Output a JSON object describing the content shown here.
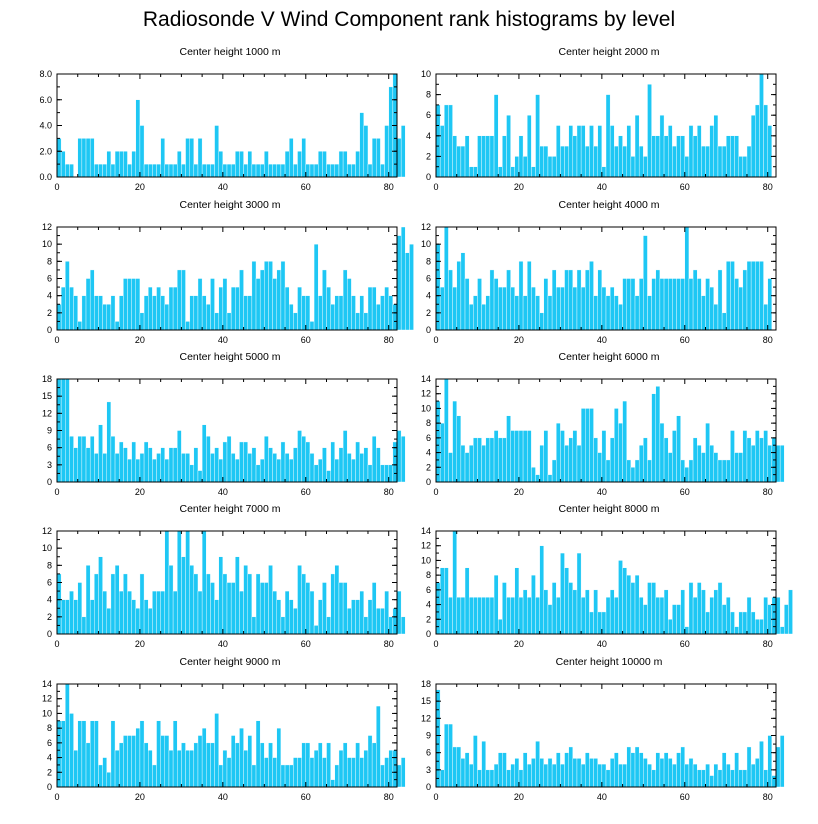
{
  "title": "Radiosonde V Wind Component rank histograms by level",
  "colors": {
    "bar": "#1ec7f4",
    "axis": "#000000",
    "background": "#ffffff"
  },
  "chart_data": [
    {
      "type": "bar",
      "title": "Center height 1000 m",
      "x": "rank 0-81",
      "xticks": [
        0,
        20,
        40,
        60,
        80
      ],
      "xlim": [
        0,
        82
      ],
      "ylim": [
        0,
        8
      ],
      "yticks": [
        0,
        2,
        4,
        6,
        8
      ],
      "yticklabels": [
        "0.0",
        "2.0",
        "4.0",
        "6.0",
        "8.0"
      ],
      "values": [
        3,
        2,
        1,
        1,
        0,
        3,
        3,
        3,
        3,
        1,
        1,
        1,
        2,
        1,
        2,
        2,
        2,
        1,
        2,
        6,
        4,
        1,
        1,
        1,
        1,
        3,
        1,
        1,
        1,
        2,
        1,
        3,
        3,
        1,
        3,
        1,
        1,
        1,
        4,
        2,
        1,
        1,
        1,
        2,
        2,
        1,
        2,
        1,
        1,
        1,
        2,
        1,
        1,
        1,
        1,
        2,
        3,
        1,
        2,
        3,
        1,
        1,
        1,
        2,
        2,
        1,
        1,
        1,
        2,
        2,
        1,
        1,
        2,
        5,
        4,
        1,
        3,
        3,
        1,
        4,
        7,
        8,
        3,
        4
      ]
    },
    {
      "type": "bar",
      "title": "Center height 2000 m",
      "xticks": [
        0,
        20,
        40,
        60,
        80
      ],
      "xlim": [
        0,
        82
      ],
      "ylim": [
        0,
        10
      ],
      "yticks": [
        0,
        2,
        4,
        6,
        8,
        10
      ],
      "yticklabels": [
        "0",
        "2",
        "4",
        "6",
        "8",
        "10"
      ],
      "values": [
        7,
        5,
        7,
        7,
        4,
        3,
        3,
        4,
        1,
        1,
        4,
        4,
        4,
        4,
        8,
        1,
        4,
        6,
        1,
        2,
        4,
        2,
        6,
        1,
        8,
        3,
        3,
        2,
        2,
        5,
        3,
        3,
        5,
        4,
        5,
        5,
        3,
        5,
        3,
        5,
        1,
        8,
        5,
        3,
        4,
        3,
        5,
        2,
        6,
        3,
        2,
        9,
        4,
        4,
        6,
        4,
        5,
        3,
        4,
        4,
        2,
        5,
        4,
        5,
        3,
        3,
        5,
        6,
        3,
        3,
        4,
        4,
        4,
        2,
        2,
        3,
        6,
        7,
        10,
        7,
        5
      ]
    },
    {
      "type": "bar",
      "title": "Center height 3000 m",
      "xticks": [
        0,
        20,
        40,
        60,
        80
      ],
      "xlim": [
        0,
        82
      ],
      "ylim": [
        0,
        12
      ],
      "yticks": [
        0,
        2,
        4,
        6,
        8,
        10,
        12
      ],
      "yticklabels": [
        "0",
        "2",
        "4",
        "6",
        "8",
        "10",
        "12"
      ],
      "values": [
        3,
        5,
        8,
        5,
        4,
        1,
        4,
        6,
        7,
        4,
        4,
        3,
        3,
        4,
        1,
        4,
        6,
        6,
        6,
        6,
        2,
        4,
        5,
        4,
        5,
        4,
        3,
        5,
        5,
        7,
        7,
        1,
        4,
        4,
        6,
        4,
        3,
        6,
        2,
        5,
        6,
        2,
        5,
        5,
        7,
        4,
        4,
        8,
        6,
        7,
        8,
        8,
        6,
        7,
        8,
        5,
        3,
        2,
        5,
        4,
        4,
        1,
        10,
        4,
        7,
        5,
        3,
        4,
        4,
        7,
        6,
        4,
        2,
        4,
        2,
        5,
        5,
        3,
        4,
        5,
        4,
        3,
        11,
        12,
        9,
        10
      ]
    },
    {
      "type": "bar",
      "title": "Center height 4000 m",
      "xticks": [
        0,
        20,
        40,
        60,
        80
      ],
      "xlim": [
        0,
        82
      ],
      "ylim": [
        0,
        12
      ],
      "yticks": [
        0,
        2,
        4,
        6,
        8,
        10,
        12
      ],
      "yticklabels": [
        "0",
        "2",
        "4",
        "6",
        "8",
        "10",
        "12"
      ],
      "values": [
        10,
        5,
        12,
        7,
        5,
        8,
        9,
        6,
        3,
        4,
        6,
        3,
        4,
        7,
        6,
        5,
        5,
        7,
        5,
        4,
        8,
        4,
        8,
        5,
        4,
        2,
        6,
        4,
        7,
        5,
        5,
        7,
        7,
        5,
        7,
        5,
        7,
        8,
        4,
        7,
        5,
        4,
        5,
        4,
        3,
        6,
        6,
        6,
        4,
        6,
        11,
        4,
        6,
        7,
        6,
        6,
        6,
        6,
        6,
        6,
        12,
        6,
        7,
        6,
        4,
        6,
        5,
        3,
        7,
        2,
        8,
        8,
        6,
        5,
        7,
        8,
        8,
        8,
        8,
        3,
        6
      ]
    },
    {
      "type": "bar",
      "title": "Center height 5000 m",
      "xticks": [
        0,
        20,
        40,
        60,
        80
      ],
      "xlim": [
        0,
        82
      ],
      "ylim": [
        0,
        18
      ],
      "yticks": [
        0,
        3,
        6,
        9,
        12,
        15,
        18
      ],
      "yticklabels": [
        "0",
        "3",
        "6",
        "9",
        "12",
        "15",
        "18"
      ],
      "values": [
        18,
        18,
        18,
        8,
        6,
        8,
        8,
        6,
        8,
        5,
        10,
        5,
        14,
        8,
        5,
        7,
        6,
        4,
        7,
        4,
        5,
        7,
        6,
        4,
        5,
        6,
        4,
        6,
        6,
        9,
        5,
        5,
        3,
        6,
        2,
        10,
        8,
        5,
        6,
        4,
        7,
        8,
        5,
        4,
        7,
        7,
        5,
        6,
        3,
        4,
        8,
        6,
        5,
        4,
        7,
        5,
        4,
        6,
        9,
        8,
        7,
        5,
        3,
        4,
        6,
        2,
        7,
        4,
        6,
        9,
        5,
        4,
        7,
        5,
        6,
        3,
        8,
        6,
        3,
        3,
        3,
        7,
        9,
        8
      ]
    },
    {
      "type": "bar",
      "title": "Center height 6000 m",
      "xticks": [
        0,
        20,
        40,
        60,
        80
      ],
      "xlim": [
        0,
        82
      ],
      "ylim": [
        0,
        14
      ],
      "yticks": [
        0,
        2,
        4,
        6,
        8,
        10,
        12,
        14
      ],
      "yticklabels": [
        "0",
        "2",
        "4",
        "6",
        "8",
        "10",
        "12",
        "14"
      ],
      "values": [
        11,
        8,
        14,
        4,
        11,
        9,
        5,
        4,
        5,
        6,
        6,
        5,
        6,
        6,
        7,
        6,
        6,
        9,
        7,
        7,
        7,
        7,
        7,
        2,
        1,
        5,
        7,
        1,
        3,
        8,
        7,
        5,
        6,
        7,
        5,
        10,
        10,
        10,
        6,
        4,
        7,
        3,
        6,
        10,
        8,
        11,
        3,
        2,
        3,
        5,
        6,
        3,
        12,
        13,
        8,
        6,
        4,
        7,
        9,
        3,
        2,
        3,
        6,
        5,
        4,
        8,
        5,
        4,
        3,
        3,
        3,
        7,
        4,
        4,
        7,
        6,
        5,
        7,
        6,
        7,
        5,
        6,
        5,
        5
      ]
    },
    {
      "type": "bar",
      "title": "Center height 7000 m",
      "xticks": [
        0,
        20,
        40,
        60,
        80
      ],
      "xlim": [
        0,
        82
      ],
      "ylim": [
        0,
        12
      ],
      "yticks": [
        0,
        2,
        4,
        6,
        8,
        10,
        12
      ],
      "yticklabels": [
        "0",
        "2",
        "4",
        "6",
        "8",
        "10",
        "12"
      ],
      "values": [
        7,
        4,
        4,
        5,
        4,
        6,
        2,
        8,
        4,
        7,
        9,
        5,
        3,
        7,
        8,
        5,
        7,
        5,
        4,
        3,
        7,
        4,
        3,
        5,
        5,
        5,
        12,
        8,
        5,
        12,
        9,
        12,
        8,
        7,
        5,
        12,
        7,
        6,
        4,
        9,
        7,
        6,
        6,
        9,
        5,
        8,
        7,
        2,
        7,
        6,
        6,
        8,
        5,
        4,
        2,
        5,
        4,
        3,
        8,
        7,
        6,
        5,
        1,
        4,
        6,
        2,
        7,
        8,
        6,
        6,
        3,
        4,
        4,
        5,
        2,
        4,
        6,
        3,
        3,
        5,
        2,
        3,
        5,
        2
      ]
    },
    {
      "type": "bar",
      "title": "Center height 8000 m",
      "xticks": [
        0,
        20,
        40,
        60,
        80
      ],
      "xlim": [
        0,
        82
      ],
      "ylim": [
        0,
        14
      ],
      "yticks": [
        0,
        2,
        4,
        6,
        8,
        10,
        12,
        14
      ],
      "yticklabels": [
        "0",
        "2",
        "4",
        "6",
        "8",
        "10",
        "12",
        "14"
      ],
      "values": [
        7,
        9,
        9,
        5,
        14,
        5,
        5,
        9,
        5,
        5,
        5,
        5,
        5,
        5,
        8,
        2,
        7,
        5,
        5,
        9,
        5,
        6,
        5,
        8,
        5,
        12,
        6,
        4,
        7,
        5,
        11,
        9,
        7,
        6,
        11,
        5,
        6,
        3,
        6,
        3,
        3,
        5,
        6,
        5,
        10,
        9,
        8,
        7,
        8,
        5,
        4,
        7,
        7,
        5,
        5,
        6,
        2,
        4,
        4,
        6,
        1,
        7,
        5,
        7,
        6,
        3,
        5,
        6,
        7,
        4,
        5,
        3,
        1,
        3,
        3,
        5,
        3,
        2,
        2,
        5,
        4,
        5,
        5,
        1,
        4,
        6
      ]
    },
    {
      "type": "bar",
      "title": "Center height 9000 m",
      "xticks": [
        0,
        20,
        40,
        60,
        80
      ],
      "xlim": [
        0,
        82
      ],
      "ylim": [
        0,
        14
      ],
      "yticks": [
        0,
        2,
        4,
        6,
        8,
        10,
        12,
        14
      ],
      "yticklabels": [
        "0",
        "2",
        "4",
        "6",
        "8",
        "10",
        "12",
        "14"
      ],
      "values": [
        9,
        9,
        14,
        10,
        5,
        9,
        9,
        6,
        9,
        9,
        3,
        4,
        2,
        9,
        5,
        6,
        7,
        7,
        7,
        8,
        9,
        6,
        5,
        3,
        9,
        7,
        7,
        5,
        9,
        5,
        6,
        5,
        5,
        6,
        7,
        8,
        6,
        6,
        10,
        3,
        5,
        4,
        7,
        6,
        8,
        5,
        7,
        3,
        9,
        6,
        4,
        6,
        4,
        8,
        3,
        3,
        3,
        4,
        4,
        6,
        6,
        4,
        5,
        6,
        4,
        6,
        1,
        3,
        5,
        6,
        4,
        4,
        6,
        4,
        5,
        7,
        6,
        11,
        3,
        4,
        5,
        5,
        3,
        4
      ]
    },
    {
      "type": "bar",
      "title": "Center height 10000 m",
      "xticks": [
        0,
        20,
        40,
        60,
        80
      ],
      "xlim": [
        0,
        82
      ],
      "ylim": [
        0,
        18
      ],
      "yticks": [
        0,
        3,
        6,
        9,
        12,
        15,
        18
      ],
      "yticklabels": [
        "0",
        "3",
        "6",
        "9",
        "12",
        "15",
        "18"
      ],
      "values": [
        17,
        3,
        11,
        11,
        7,
        7,
        5,
        6,
        4,
        9,
        3,
        8,
        3,
        3,
        4,
        6,
        6,
        3,
        4,
        5,
        3,
        6,
        4,
        5,
        8,
        5,
        4,
        5,
        4,
        6,
        4,
        6,
        7,
        5,
        5,
        4,
        6,
        5,
        5,
        4,
        4,
        3,
        5,
        6,
        4,
        4,
        7,
        6,
        7,
        6,
        5,
        4,
        3,
        6,
        5,
        6,
        5,
        4,
        6,
        7,
        4,
        5,
        4,
        3,
        3,
        4,
        2,
        4,
        3,
        6,
        4,
        3,
        6,
        3,
        3,
        7,
        4,
        5,
        8,
        3,
        9,
        2,
        7,
        9
      ]
    }
  ]
}
